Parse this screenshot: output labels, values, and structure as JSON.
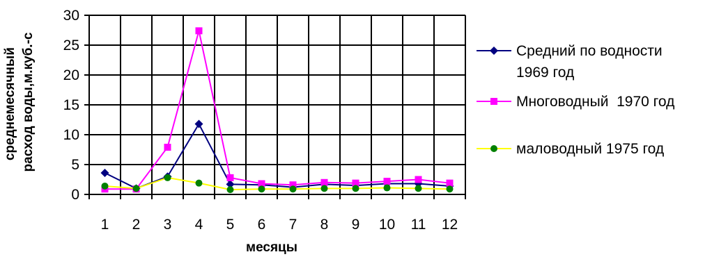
{
  "chart_data": {
    "type": "line",
    "title": "",
    "xlabel": "месяцы",
    "ylabel_lines": [
      "среднемесячный",
      "расход воды,м.куб.-с"
    ],
    "categories": [
      "1",
      "2",
      "3",
      "4",
      "5",
      "6",
      "7",
      "8",
      "9",
      "10",
      "11",
      "12"
    ],
    "ylim": [
      0,
      30
    ],
    "yticks": [
      0,
      5,
      10,
      15,
      20,
      25,
      30
    ],
    "grid": true,
    "legend_position": "right",
    "series": [
      {
        "name_lines": [
          "Средний по водности",
          "1969 год"
        ],
        "color": "#000080",
        "marker": "diamond",
        "values": [
          3.6,
          1.0,
          3.0,
          11.8,
          1.7,
          1.6,
          1.2,
          1.7,
          1.5,
          1.8,
          1.8,
          1.4
        ]
      },
      {
        "name_lines": [
          "Многоводный  1970 год"
        ],
        "color": "#ff00ff",
        "marker": "square",
        "values": [
          0.9,
          0.9,
          7.9,
          27.4,
          2.8,
          1.8,
          1.6,
          2.0,
          1.9,
          2.2,
          2.5,
          1.9
        ]
      },
      {
        "name_lines": [
          "маловодный 1975 год"
        ],
        "color": "#ffff00",
        "marker_color": "#008000",
        "marker": "circle",
        "values": [
          1.4,
          1.0,
          2.8,
          1.9,
          0.8,
          0.9,
          0.9,
          1.0,
          1.0,
          1.1,
          1.0,
          0.9
        ]
      }
    ]
  }
}
